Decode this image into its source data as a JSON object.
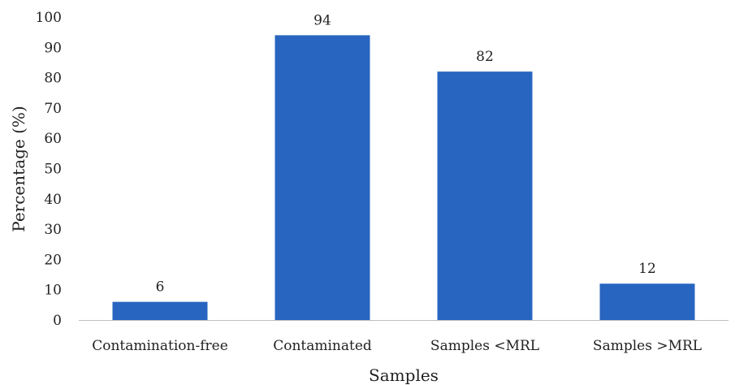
{
  "chart_data": {
    "type": "bar",
    "title": "",
    "xlabel": "Samples",
    "ylabel": "Percentage (%)",
    "categories": [
      "Contamination-free",
      "Contaminated",
      "Samples <MRL",
      "Samples >MRL"
    ],
    "values": [
      6,
      94,
      82,
      12
    ],
    "data_labels": [
      "6",
      "94",
      "82",
      "12"
    ],
    "ylim": [
      0,
      100
    ],
    "yticks": [
      "0",
      "10",
      "20",
      "30",
      "40",
      "50",
      "60",
      "70",
      "80",
      "90",
      "100"
    ],
    "grid": false,
    "legend": "none",
    "bar_color": "#2865c0",
    "axis_color": "#bfbfbf"
  }
}
